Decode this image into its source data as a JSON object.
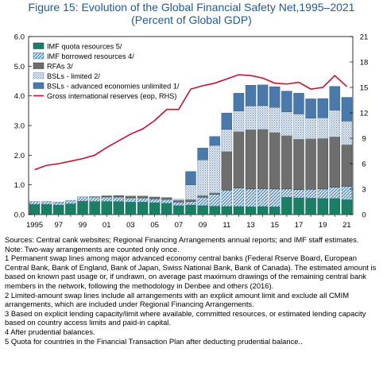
{
  "title_line1": "Figure 15:  Evolution of the Global Financial Safety Net,1995–2021",
  "title_line2": "(Percent of Global GDP)",
  "colors": {
    "title": "#1f5a9c",
    "imf_quota": "#1a7f64",
    "imf_borrowed": "#cfe6f2",
    "rfas": "#6e6e6e",
    "bsls_limited": "#c9d3df",
    "bsls_unlimited": "#4a79ab",
    "reserves": "#c8102e"
  },
  "chart_data": {
    "type": "bar",
    "stacked": true,
    "categories": [
      "1995",
      "1996",
      "1997",
      "1998",
      "1999",
      "2000",
      "2001",
      "2002",
      "2003",
      "2004",
      "2005",
      "2006",
      "2007",
      "2008",
      "2009",
      "2010",
      "2011",
      "2012",
      "2013",
      "2014",
      "2015",
      "2016",
      "2017",
      "2018",
      "2019",
      "2020",
      "2021"
    ],
    "x_tick_labels": [
      "1995",
      "97",
      "99",
      "01",
      "03",
      "05",
      "07",
      "09",
      "11",
      "13",
      "15",
      "17",
      "19",
      "21"
    ],
    "ylim_left": [
      0,
      6
    ],
    "yticks_left": [
      "0.0",
      "1.0",
      "2.0",
      "3.0",
      "4.0",
      "5.0",
      "6.0"
    ],
    "ylim_right": [
      0,
      21
    ],
    "yticks_right": [
      "0",
      "3",
      "6",
      "9",
      "12",
      "15",
      "18",
      "21"
    ],
    "legend_position": "top-left",
    "series": [
      {
        "name": "IMF quota resources 5/",
        "pattern": "quota",
        "values": [
          0.34,
          0.34,
          0.32,
          0.36,
          0.45,
          0.44,
          0.44,
          0.44,
          0.42,
          0.42,
          0.4,
          0.38,
          0.3,
          0.32,
          0.3,
          0.28,
          0.27,
          0.27,
          0.26,
          0.27,
          0.26,
          0.58,
          0.56,
          0.55,
          0.54,
          0.54,
          0.5
        ]
      },
      {
        "name": "IMF borrowed resources 4/",
        "pattern": "borrowed",
        "values": [
          0.1,
          0.1,
          0.1,
          0.12,
          0.15,
          0.15,
          0.15,
          0.15,
          0.14,
          0.14,
          0.13,
          0.13,
          0.12,
          0.12,
          0.28,
          0.4,
          0.55,
          0.62,
          0.6,
          0.6,
          0.6,
          0.28,
          0.28,
          0.3,
          0.32,
          0.38,
          0.45
        ]
      },
      {
        "name": "RFAs 3/",
        "pattern": "rfa",
        "values": [
          0.0,
          0.0,
          0.0,
          0.0,
          0.0,
          0.01,
          0.04,
          0.05,
          0.06,
          0.06,
          0.06,
          0.06,
          0.06,
          0.06,
          0.06,
          0.05,
          1.3,
          1.9,
          2.0,
          2.0,
          1.9,
          1.8,
          1.7,
          1.7,
          1.7,
          1.7,
          1.4
        ]
      },
      {
        "name": "BSLs - limited 2/",
        "pattern": "limited",
        "values": [
          0.0,
          0.0,
          0.0,
          0.0,
          0.0,
          0.0,
          0.0,
          0.0,
          0.0,
          0.0,
          0.0,
          0.0,
          0.04,
          0.5,
          1.2,
          1.6,
          0.75,
          0.7,
          0.8,
          0.8,
          0.85,
          0.8,
          0.85,
          0.7,
          0.7,
          0.9,
          0.8
        ]
      },
      {
        "name": "BSLs - advanced economies unlimited 1/",
        "pattern": "unlimited",
        "values": [
          0.0,
          0.0,
          0.0,
          0.0,
          0.0,
          0.0,
          0.0,
          0.0,
          0.0,
          0.0,
          0.0,
          0.0,
          0.0,
          0.45,
          0.4,
          0.3,
          0.55,
          0.6,
          0.7,
          0.7,
          0.7,
          0.7,
          0.7,
          0.65,
          0.65,
          0.8,
          0.8
        ]
      }
    ],
    "line_series": {
      "name": "Gross international reserves (eop, RHS)",
      "axis": "right",
      "values": [
        5.3,
        5.8,
        6.0,
        6.3,
        6.6,
        7.0,
        7.9,
        8.7,
        9.5,
        10.1,
        11.1,
        12.4,
        12.4,
        14.8,
        15.2,
        15.5,
        16.0,
        16.5,
        16.4,
        16.1,
        15.5,
        15.4,
        15.6,
        14.8,
        15.0,
        16.4,
        15.1
      ]
    }
  },
  "notes": [
    "Sources: Central cank websites; Regional Financing Arrangements annual reports; and IMF staff estimates.",
    "Note: Two-way arrangements are counted only once.",
    "1 Permanent swap lines among major advanced economy central banks (Federal Rserve Board, European Central Bank, Bank of England, Bank of Japan, Swiss National Bank, Bank of Canada). The estimated amount is based on known past usage or, if undrawn, on average past maximum drawings of the remaining central bank members in the network, following the methodology in Denbee and others (2016).",
    "2 Limited-amount swap lines include all arrangements with an explicit amount limit and exclude all CMIM arrangements, which are included under Regional Financing Arrangements.",
    "3 Based on explicit lending capacity/limit where available, committed resources, or estimated lending capacity based on country access limits and paid-in capital.",
    "4 After prudential balances.",
    "5 Quota for countries in the Financial Transaction Plan after deducting prudential balance.."
  ]
}
